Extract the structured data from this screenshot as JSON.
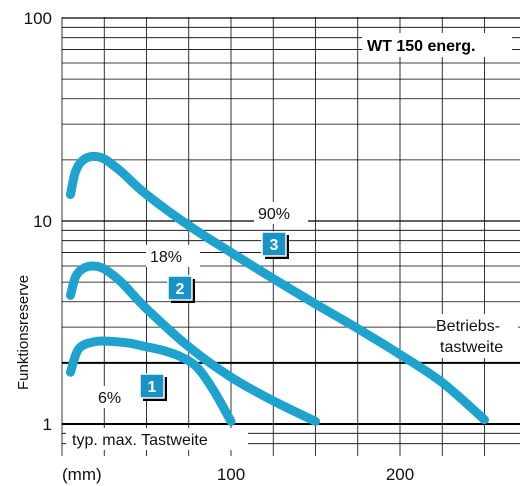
{
  "chart_data": {
    "type": "line",
    "title": "WT 150 energ.",
    "ylabel": "Funktionsreserve",
    "x_unit_label": "(mm)",
    "x_ticks": [
      100,
      200
    ],
    "y_ticks": [
      1,
      10,
      100
    ],
    "y_tick_labels": [
      "1",
      "10",
      "100"
    ],
    "xlim": [
      0,
      260
    ],
    "ylim": [
      0.75,
      100
    ],
    "y_scale": "log",
    "grid": true,
    "reference_lines": [
      {
        "y": 1,
        "label": "typ. max. Tastweite"
      },
      {
        "y": 2,
        "label_line1": "Betriebs-",
        "label_line2": "tastweite"
      }
    ],
    "colors": {
      "curve": "#1ea3cf",
      "badge": "#1993c5",
      "grid": "#000000"
    },
    "series": [
      {
        "name": "6%",
        "badge": "1",
        "points": [
          [
            5,
            1.8
          ],
          [
            10,
            2.35
          ],
          [
            20,
            2.55
          ],
          [
            30,
            2.55
          ],
          [
            40,
            2.5
          ],
          [
            50,
            2.4
          ],
          [
            60,
            2.3
          ],
          [
            70,
            2.15
          ],
          [
            80,
            1.9
          ],
          [
            90,
            1.45
          ],
          [
            100,
            1.03
          ]
        ]
      },
      {
        "name": "18%",
        "badge": "2",
        "points": [
          [
            5,
            4.3
          ],
          [
            8,
            5.3
          ],
          [
            12,
            5.8
          ],
          [
            18,
            6.0
          ],
          [
            25,
            5.8
          ],
          [
            35,
            5.0
          ],
          [
            50,
            3.7
          ],
          [
            75,
            2.4
          ],
          [
            100,
            1.7
          ],
          [
            125,
            1.3
          ],
          [
            150,
            1.03
          ]
        ]
      },
      {
        "name": "90%",
        "badge": "3",
        "points": [
          [
            5,
            13.5
          ],
          [
            8,
            17.5
          ],
          [
            12,
            19.8
          ],
          [
            18,
            20.8
          ],
          [
            25,
            20.2
          ],
          [
            35,
            17.5
          ],
          [
            50,
            13.5
          ],
          [
            75,
            9.5
          ],
          [
            100,
            7.0
          ],
          [
            125,
            5.2
          ],
          [
            150,
            3.9
          ],
          [
            175,
            2.95
          ],
          [
            200,
            2.2
          ],
          [
            225,
            1.6
          ],
          [
            250,
            1.05
          ]
        ]
      }
    ]
  }
}
